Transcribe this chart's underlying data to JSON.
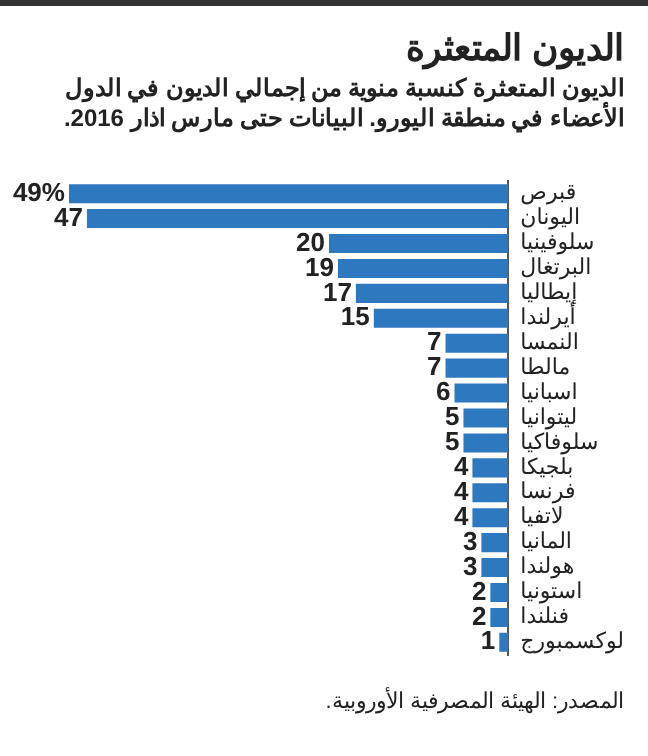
{
  "chart_data": {
    "type": "bar",
    "orientation": "horizontal",
    "title": "الديون المتعثرة",
    "subtitle": "الديون المتعثرة كنسبة منوية من إجمالي الديون في الدول الأعضاء في منطقة اليورو. البيانات حتى مارس اذار 2016.",
    "categories": [
      "قبرص",
      "اليونان",
      "سلوفينيا",
      "البرتغال",
      "إيطاليا",
      "أيرلندا",
      "النمسا",
      "مالطا",
      "اسبانيا",
      "ليتوانيا",
      "سلوفاكيا",
      "بلجيكا",
      "فرنسا",
      "لاتفيا",
      "المانيا",
      "هولندا",
      "استونيا",
      "فنلندا",
      "لوكسمبورج"
    ],
    "values": [
      49,
      47,
      20,
      19,
      17,
      15,
      7,
      7,
      6,
      5,
      5,
      4,
      4,
      4,
      3,
      3,
      2,
      2,
      1
    ],
    "value_labels": [
      "49%",
      "47",
      "20",
      "19",
      "17",
      "15",
      "7",
      "7",
      "6",
      "5",
      "5",
      "4",
      "4",
      "4",
      "3",
      "3",
      "2",
      "2",
      "1"
    ],
    "color": "#2e78c0",
    "tick_labels": "y",
    "annotations": [
      "المصدر: الهيئة المصرفية الأوروبية."
    ]
  }
}
